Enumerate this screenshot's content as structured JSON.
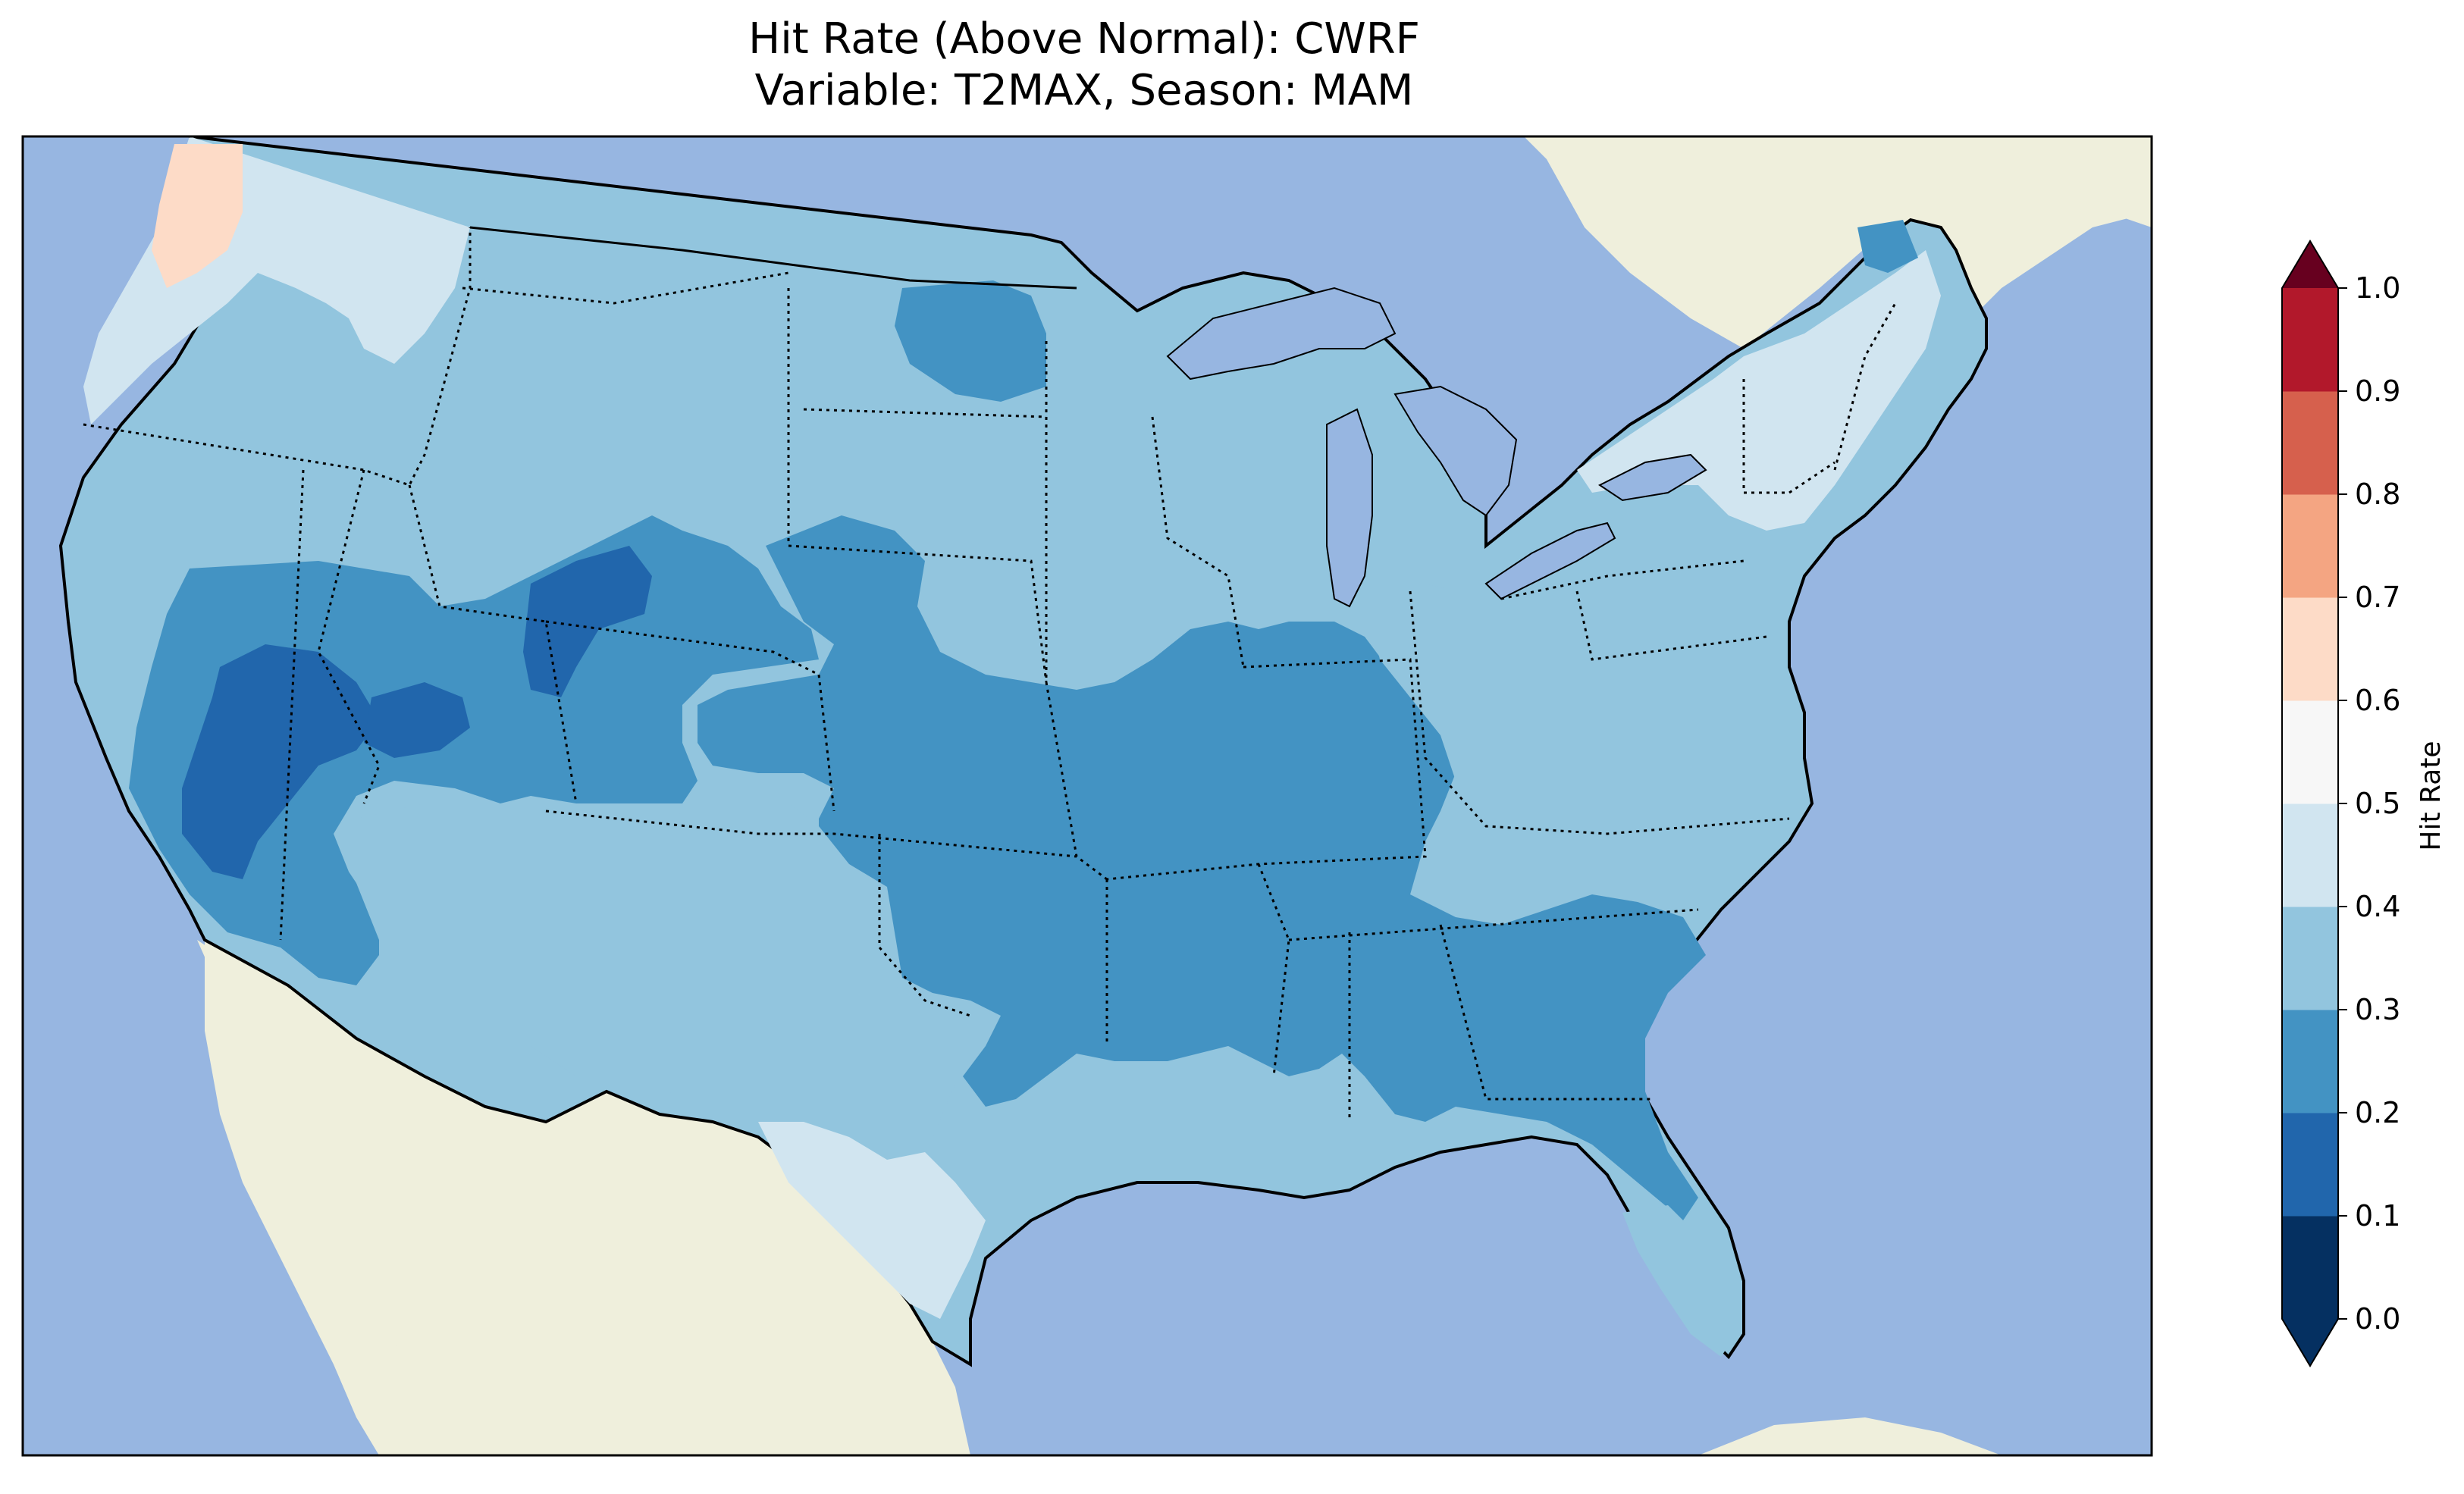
{
  "title": {
    "line1": "Hit Rate (Above Normal): CWRF",
    "line2": "Variable: T2MAX, Season: MAM"
  },
  "colors": {
    "ocean": "#97b6e1",
    "land": "#efefdc",
    "lakes": "#97b6e1",
    "coast": "#000000"
  },
  "colorbar": {
    "label": "Hit Rate",
    "ticks": [
      "0.0",
      "0.1",
      "0.2",
      "0.3",
      "0.4",
      "0.5",
      "0.6",
      "0.7",
      "0.8",
      "0.9",
      "1.0"
    ],
    "colors": [
      "#053061",
      "#2166ac",
      "#4393c3",
      "#92c5de",
      "#d1e5f0",
      "#f7f7f7",
      "#fddbc7",
      "#f4a582",
      "#d6604d",
      "#b2182b",
      "#67001f"
    ],
    "underflow_color": "#053061",
    "overflow_color": "#67001f"
  },
  "chart_data": {
    "type": "heatmap",
    "title": "Hit Rate (Above Normal): CWRF\nVariable: T2MAX, Season: MAM",
    "colorbar_label": "Hit Rate",
    "levels": [
      0.0,
      0.1,
      0.2,
      0.3,
      0.4,
      0.5,
      0.6,
      0.7,
      0.8,
      0.9,
      1.0
    ],
    "extend": "both",
    "regions": [
      {
        "region": "Pacific Northwest coast",
        "value": 0.45
      },
      {
        "region": "NW Washington tip",
        "value": 0.55
      },
      {
        "region": "Northern Rockies / Plains",
        "value": 0.35
      },
      {
        "region": "Great Basin / Nevada",
        "value": 0.25
      },
      {
        "region": "Western Nevada core",
        "value": 0.15
      },
      {
        "region": "Wyoming / Colorado",
        "value": 0.25
      },
      {
        "region": "Central Wyoming core",
        "value": 0.15
      },
      {
        "region": "Southern Plains / Oklahoma / Kansas",
        "value": 0.25
      },
      {
        "region": "Missouri / Arkansas / Illinois",
        "value": 0.25
      },
      {
        "region": "Southeast / Georgia / Florida",
        "value": 0.25
      },
      {
        "region": "Southwest / Arizona / New Mexico",
        "value": 0.35
      },
      {
        "region": "South Texas",
        "value": 0.45
      },
      {
        "region": "Northeast / New England",
        "value": 0.45
      },
      {
        "region": "Northern Maine",
        "value": 0.25
      },
      {
        "region": "Midwest / Great Lakes",
        "value": 0.35
      },
      {
        "region": "Mid-Atlantic",
        "value": 0.35
      }
    ]
  }
}
